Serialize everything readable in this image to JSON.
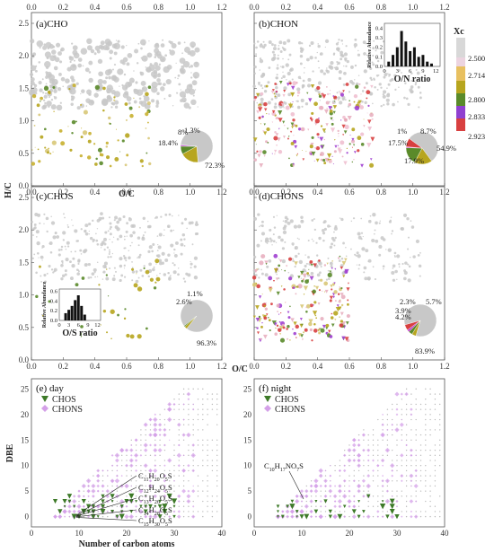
{
  "chart_data": [
    {
      "type": "scatter",
      "panel": "(a)",
      "title": "CHO",
      "xlim": [
        0,
        1.2
      ],
      "ylim": [
        0,
        2.5
      ],
      "ylabel": "H/C",
      "xticks": [
        "0.0",
        "0.2",
        "0.4",
        "0.6",
        "0.8",
        "1.0",
        "1.2"
      ],
      "yticks": [
        "0.0",
        "0.5",
        "1.0",
        "1.5",
        "2.0",
        "2.5"
      ],
      "pie": {
        "labels": [
          "72.3%",
          "18.4%",
          "8%",
          "1.3%"
        ],
        "values": [
          72.3,
          18.4,
          8.0,
          1.3
        ],
        "colors": [
          "#c8c8c8",
          "#b7a51e",
          "#5a8a2a",
          "#c040d0"
        ]
      }
    },
    {
      "type": "scatter",
      "panel": "(b)",
      "title": "CHON",
      "xlim": [
        0,
        1.2
      ],
      "ylim": [
        0,
        2.5
      ],
      "xticks": [
        "0.0",
        "0.2",
        "0.4",
        "0.6",
        "0.8",
        "1.0",
        "1.2"
      ],
      "yticks": [
        "0.0",
        "0.5",
        "1.0",
        "1.5",
        "2.0",
        "2.5"
      ],
      "pie": {
        "labels": [
          "54.9%",
          "17.9%",
          "17.5%",
          "1%",
          "8.7%"
        ],
        "values": [
          54.9,
          17.9,
          17.5,
          1.0,
          8.7
        ],
        "colors": [
          "#c8c8c8",
          "#b7a51e",
          "#5a8a2a",
          "#c040d0",
          "#d84040"
        ]
      },
      "inset": {
        "type": "bar",
        "xlabel": "O/N ratio",
        "ylabel": "Relative Abundance",
        "xticks": [
          "0",
          "3",
          "6",
          "9",
          "12"
        ],
        "yticks": [
          "0.0",
          "0.1",
          "0.2",
          "0.3",
          "0.4"
        ],
        "x": [
          1,
          2,
          3,
          4,
          5,
          6,
          7,
          8,
          9,
          10,
          11
        ],
        "values": [
          0.05,
          0.12,
          0.2,
          0.37,
          0.26,
          0.16,
          0.2,
          0.1,
          0.12,
          0.05,
          0.03
        ],
        "ylim": [
          0,
          0.45
        ],
        "xlim": [
          0,
          13
        ]
      }
    },
    {
      "type": "scatter",
      "panel": "(c)",
      "title": "CHOS",
      "xlim": [
        0,
        1.2
      ],
      "ylim": [
        0,
        2.5
      ],
      "ylabel": "H/C",
      "xlabel": "O/C",
      "xticks": [
        "0.0",
        "0.2",
        "0.4",
        "0.6",
        "0.8",
        "1.0",
        "1.2"
      ],
      "yticks": [
        "0.0",
        "0.5",
        "1.0",
        "1.5",
        "2.0",
        "2.5"
      ],
      "pie": {
        "labels": [
          "96.3%",
          "2.6%",
          "1.1%"
        ],
        "values": [
          96.3,
          2.6,
          1.1
        ],
        "colors": [
          "#c8c8c8",
          "#b7a51e",
          "#5a8a2a"
        ]
      },
      "inset": {
        "type": "bar",
        "xlabel": "O/S ratio",
        "ylabel": "Relative Abundance",
        "xticks": [
          "0",
          "3",
          "6",
          "9",
          "12"
        ],
        "yticks": [
          "0.0",
          "0.2",
          "0.4",
          "0.6"
        ],
        "x": [
          2,
          3,
          4,
          5,
          6,
          7,
          8
        ],
        "values": [
          0.15,
          0.22,
          0.3,
          0.42,
          0.52,
          0.3,
          0.12
        ],
        "ylim": [
          0,
          0.65
        ],
        "xlim": [
          0,
          13
        ]
      }
    },
    {
      "type": "scatter",
      "panel": "(d)",
      "title": "CHONS",
      "xlim": [
        0,
        1.2
      ],
      "ylim": [
        0,
        2.5
      ],
      "xlabel": "O/C",
      "xticks": [
        "0.0",
        "0.2",
        "0.4",
        "0.6",
        "0.8",
        "1.0",
        "1.2"
      ],
      "yticks": [
        "0.0",
        "0.5",
        "1.0",
        "1.5",
        "2.0",
        "2.5"
      ],
      "pie": {
        "labels": [
          "83.9%",
          "4.2%",
          "3.9%",
          "2.3%",
          "5.7%"
        ],
        "values": [
          83.9,
          4.2,
          3.9,
          2.3,
          5.7
        ],
        "colors": [
          "#c8c8c8",
          "#b7a51e",
          "#5a8a2a",
          "#c040d0",
          "#d84040"
        ]
      }
    },
    {
      "type": "scatter",
      "panel": "(e)",
      "title": "day",
      "xlim": [
        0,
        40
      ],
      "ylim": [
        -2,
        27
      ],
      "xlabel": "Number of carbon atoms",
      "ylabel": "DBE",
      "xticks": [
        "0",
        "10",
        "20",
        "30",
        "40"
      ],
      "yticks": [
        "0",
        "5",
        "10",
        "15",
        "20",
        "25"
      ],
      "legend": [
        "CHOS",
        "CHONS"
      ],
      "annotations": [
        {
          "base": "C",
          "parts": [
            [
              "11",
              "H"
            ],
            [
              "20",
              "O"
            ],
            [
              "5",
              "S"
            ]
          ]
        },
        {
          "base": "C",
          "parts": [
            [
              "12",
              "H"
            ],
            [
              "24",
              "O"
            ],
            [
              "5",
              "S"
            ]
          ]
        },
        {
          "base": "C",
          "parts": [
            [
              "13",
              "H"
            ],
            [
              "26",
              "O"
            ],
            [
              "5",
              "S"
            ]
          ]
        },
        {
          "base": "C",
          "parts": [
            [
              "14",
              "H"
            ],
            [
              "28",
              "O"
            ],
            [
              "5",
              "S"
            ]
          ]
        },
        {
          "base": "C",
          "parts": [
            [
              "15",
              "H"
            ],
            [
              "30",
              "O"
            ],
            [
              "5",
              "S"
            ]
          ]
        }
      ]
    },
    {
      "type": "scatter",
      "panel": "(f)",
      "title": "night",
      "xlim": [
        0,
        40
      ],
      "ylim": [
        -2,
        27
      ],
      "xticks": [
        "0",
        "10",
        "20",
        "30",
        "40"
      ],
      "yticks": [
        "0",
        "5",
        "10",
        "15",
        "20",
        "25"
      ],
      "legend": [
        "CHOS",
        "CHONS"
      ],
      "annotations": [
        {
          "base": "C",
          "parts": [
            [
              "10",
              "H"
            ],
            [
              "17",
              "NO"
            ],
            [
              "7",
              "S"
            ]
          ]
        }
      ]
    }
  ],
  "colorbar": {
    "title": "Xc",
    "ticks": [
      "2.500",
      "2.714",
      "2.800",
      "2.833",
      "2.923"
    ],
    "colors": [
      "#d8d8d8",
      "#e8c8d8",
      "#e8c060",
      "#b7a51e",
      "#5a8a2a",
      "#9040d0",
      "#d84040"
    ]
  },
  "colors": {
    "chos": "#3d7a28",
    "chons": "#d4a0e8",
    "gray": "#c8c8c8",
    "olive": "#b7a51e",
    "green": "#5a8a2a",
    "purple": "#a040d0",
    "red": "#d84040"
  },
  "labels": {
    "ylabel_top": "H/C",
    "xlabel_mid": "O/C",
    "xlabel_mid2": "O/C",
    "legend_chos": "CHOS",
    "legend_chons": "CHONS"
  }
}
